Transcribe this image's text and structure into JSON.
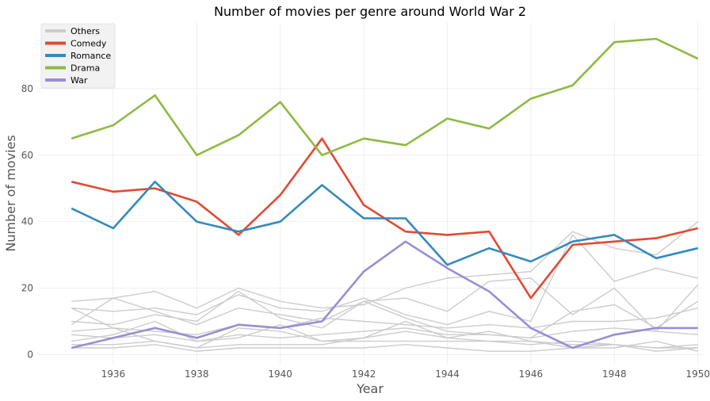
{
  "chart_data": {
    "type": "line",
    "title": "Number of movies per genre around World War 2",
    "xlabel": "Year",
    "ylabel": "Number of movies",
    "x": [
      1935,
      1936,
      1937,
      1938,
      1939,
      1940,
      1941,
      1942,
      1943,
      1944,
      1945,
      1946,
      1947,
      1948,
      1949,
      1950
    ],
    "xlim": [
      1934.2,
      1950.1
    ],
    "ylim": [
      -3,
      100
    ],
    "xticks": [
      1936,
      1938,
      1940,
      1942,
      1944,
      1946,
      1948,
      1950
    ],
    "yticks": [
      0,
      20,
      40,
      60,
      80
    ],
    "grid": true,
    "legend_position": "top-left",
    "series": [
      {
        "name": "Comedy",
        "color": "#E24A33",
        "values": [
          52,
          49,
          50,
          46,
          36,
          48,
          65,
          45,
          37,
          36,
          37,
          17,
          33,
          34,
          35,
          38
        ]
      },
      {
        "name": "Romance",
        "color": "#348ABD",
        "values": [
          44,
          38,
          52,
          40,
          37,
          40,
          51,
          41,
          41,
          27,
          32,
          28,
          34,
          36,
          29,
          32
        ]
      },
      {
        "name": "Drama",
        "color": "#8EBA42",
        "values": [
          65,
          69,
          78,
          60,
          66,
          76,
          60,
          65,
          63,
          71,
          68,
          77,
          81,
          94,
          95,
          89
        ]
      },
      {
        "name": "War",
        "color": "#988ED5",
        "values": [
          2,
          5,
          8,
          5,
          9,
          8,
          10,
          25,
          34,
          26,
          19,
          8,
          2,
          6,
          8,
          8
        ]
      }
    ],
    "others": {
      "name": "Others",
      "color": "#cccccc",
      "series": [
        [
          16,
          17,
          19,
          14,
          20,
          16,
          14,
          15,
          20,
          23,
          24,
          25,
          37,
          32,
          30,
          40
        ],
        [
          14,
          13,
          14,
          12,
          18,
          14,
          13,
          17,
          12,
          9,
          13,
          10,
          36,
          22,
          26,
          23
        ],
        [
          10,
          9,
          12,
          10,
          19,
          11,
          8,
          16,
          17,
          13,
          22,
          23,
          12,
          20,
          7,
          21
        ],
        [
          9,
          17,
          13,
          9,
          14,
          12,
          10,
          16,
          11,
          7,
          6,
          5,
          13,
          15,
          8,
          16
        ],
        [
          7,
          8,
          7,
          6,
          9,
          8,
          11,
          10,
          9,
          8,
          9,
          8,
          10,
          10,
          11,
          14
        ],
        [
          6,
          5,
          6,
          4,
          6,
          5,
          6,
          7,
          8,
          6,
          6,
          5,
          7,
          8,
          7,
          6
        ],
        [
          14,
          8,
          4,
          2,
          8,
          7,
          4,
          5,
          10,
          5,
          4,
          3,
          4,
          3,
          2,
          3
        ],
        [
          4,
          6,
          10,
          4,
          5,
          9,
          4,
          4,
          4,
          4,
          4,
          4,
          3,
          3,
          2,
          2
        ],
        [
          3,
          3,
          4,
          2,
          3,
          3,
          3,
          5,
          7,
          5,
          7,
          4,
          2,
          2,
          4,
          1
        ],
        [
          2,
          2,
          3,
          1,
          2,
          2,
          2,
          2,
          3,
          2,
          1,
          1,
          2,
          3,
          1,
          2
        ]
      ]
    }
  }
}
